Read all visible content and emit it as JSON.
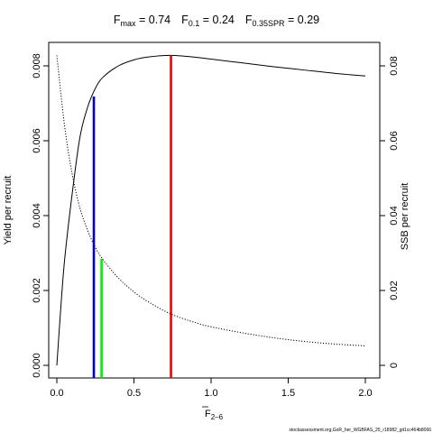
{
  "chart_data": {
    "type": "line",
    "title": {
      "fmax": {
        "main": "F",
        "sub": "max",
        "value": " = 0.74"
      },
      "f01": {
        "main": "F",
        "sub": "0.1",
        "value": " = 0.24"
      },
      "fspr": {
        "main": "F",
        "sub": "0.35SPR",
        "value": " = 0.29"
      }
    },
    "xlabel": {
      "main": "F",
      "sub": "2–6"
    },
    "ylabel_left": "Yield per recruit",
    "ylabel_right": "SSB per recruit",
    "xlim": [
      0,
      2
    ],
    "ylim_left": [
      0,
      0.0083
    ],
    "ylim_right": [
      0,
      0.083
    ],
    "x_ticks": [
      {
        "value": 0,
        "label": "0.0"
      },
      {
        "value": 0.5,
        "label": "0.5"
      },
      {
        "value": 1,
        "label": "1.0"
      },
      {
        "value": 1.5,
        "label": "1.5"
      },
      {
        "value": 2,
        "label": "2.0"
      }
    ],
    "y_left_ticks": [
      {
        "value": 0,
        "label": "0.000"
      },
      {
        "value": 0.002,
        "label": "0.002"
      },
      {
        "value": 0.004,
        "label": "0.004"
      },
      {
        "value": 0.006,
        "label": "0.006"
      },
      {
        "value": 0.008,
        "label": "0.008"
      }
    ],
    "y_right_ticks": [
      {
        "value": 0,
        "label": "0"
      },
      {
        "value": 0.02,
        "label": "0.02"
      },
      {
        "value": 0.04,
        "label": "0.04"
      },
      {
        "value": 0.06,
        "label": "0.06"
      },
      {
        "value": 0.08,
        "label": "0.08"
      }
    ],
    "series": [
      {
        "axis": "left",
        "style": "solid",
        "color": "#000000",
        "x": [
          0,
          0.02,
          0.05,
          0.1,
          0.15,
          0.2,
          0.25,
          0.3,
          0.4,
          0.5,
          0.6,
          0.74,
          0.9,
          1.0,
          1.2,
          1.4,
          1.6,
          1.8,
          2.0
        ],
        "y": [
          0,
          0.0012,
          0.0028,
          0.0046,
          0.0061,
          0.0069,
          0.0074,
          0.0077,
          0.008,
          0.00816,
          0.00824,
          0.00828,
          0.00823,
          0.00818,
          0.00808,
          0.00798,
          0.00789,
          0.0078,
          0.00773
        ]
      },
      {
        "axis": "right",
        "style": "dotted",
        "color": "#000000",
        "x": [
          0,
          0.05,
          0.1,
          0.15,
          0.2,
          0.25,
          0.3,
          0.4,
          0.5,
          0.6,
          0.74,
          0.9,
          1.0,
          1.2,
          1.4,
          1.6,
          1.8,
          2.0
        ],
        "y": [
          0.0828,
          0.064,
          0.051,
          0.042,
          0.036,
          0.0315,
          0.0282,
          0.0233,
          0.0196,
          0.0168,
          0.0137,
          0.0114,
          0.0103,
          0.0087,
          0.0074,
          0.0064,
          0.0057,
          0.0052
        ]
      }
    ],
    "reference_lines": [
      {
        "id": "f01",
        "x": 0.24,
        "y_top": 0.00718,
        "axis": "left",
        "color": "#0000cc"
      },
      {
        "id": "fspr",
        "x": 0.29,
        "y_top": 0.0285,
        "axis": "right",
        "color": "#00ee00"
      },
      {
        "id": "fmax",
        "x": 0.74,
        "y_top": 0.00828,
        "axis": "left",
        "color": "#ee0000"
      }
    ],
    "grid": false,
    "legend": "none"
  },
  "footer": {
    "caption": "stockassessment.org,GoR_her_WGBFAS_25_r18982_git1cc464b8066"
  }
}
